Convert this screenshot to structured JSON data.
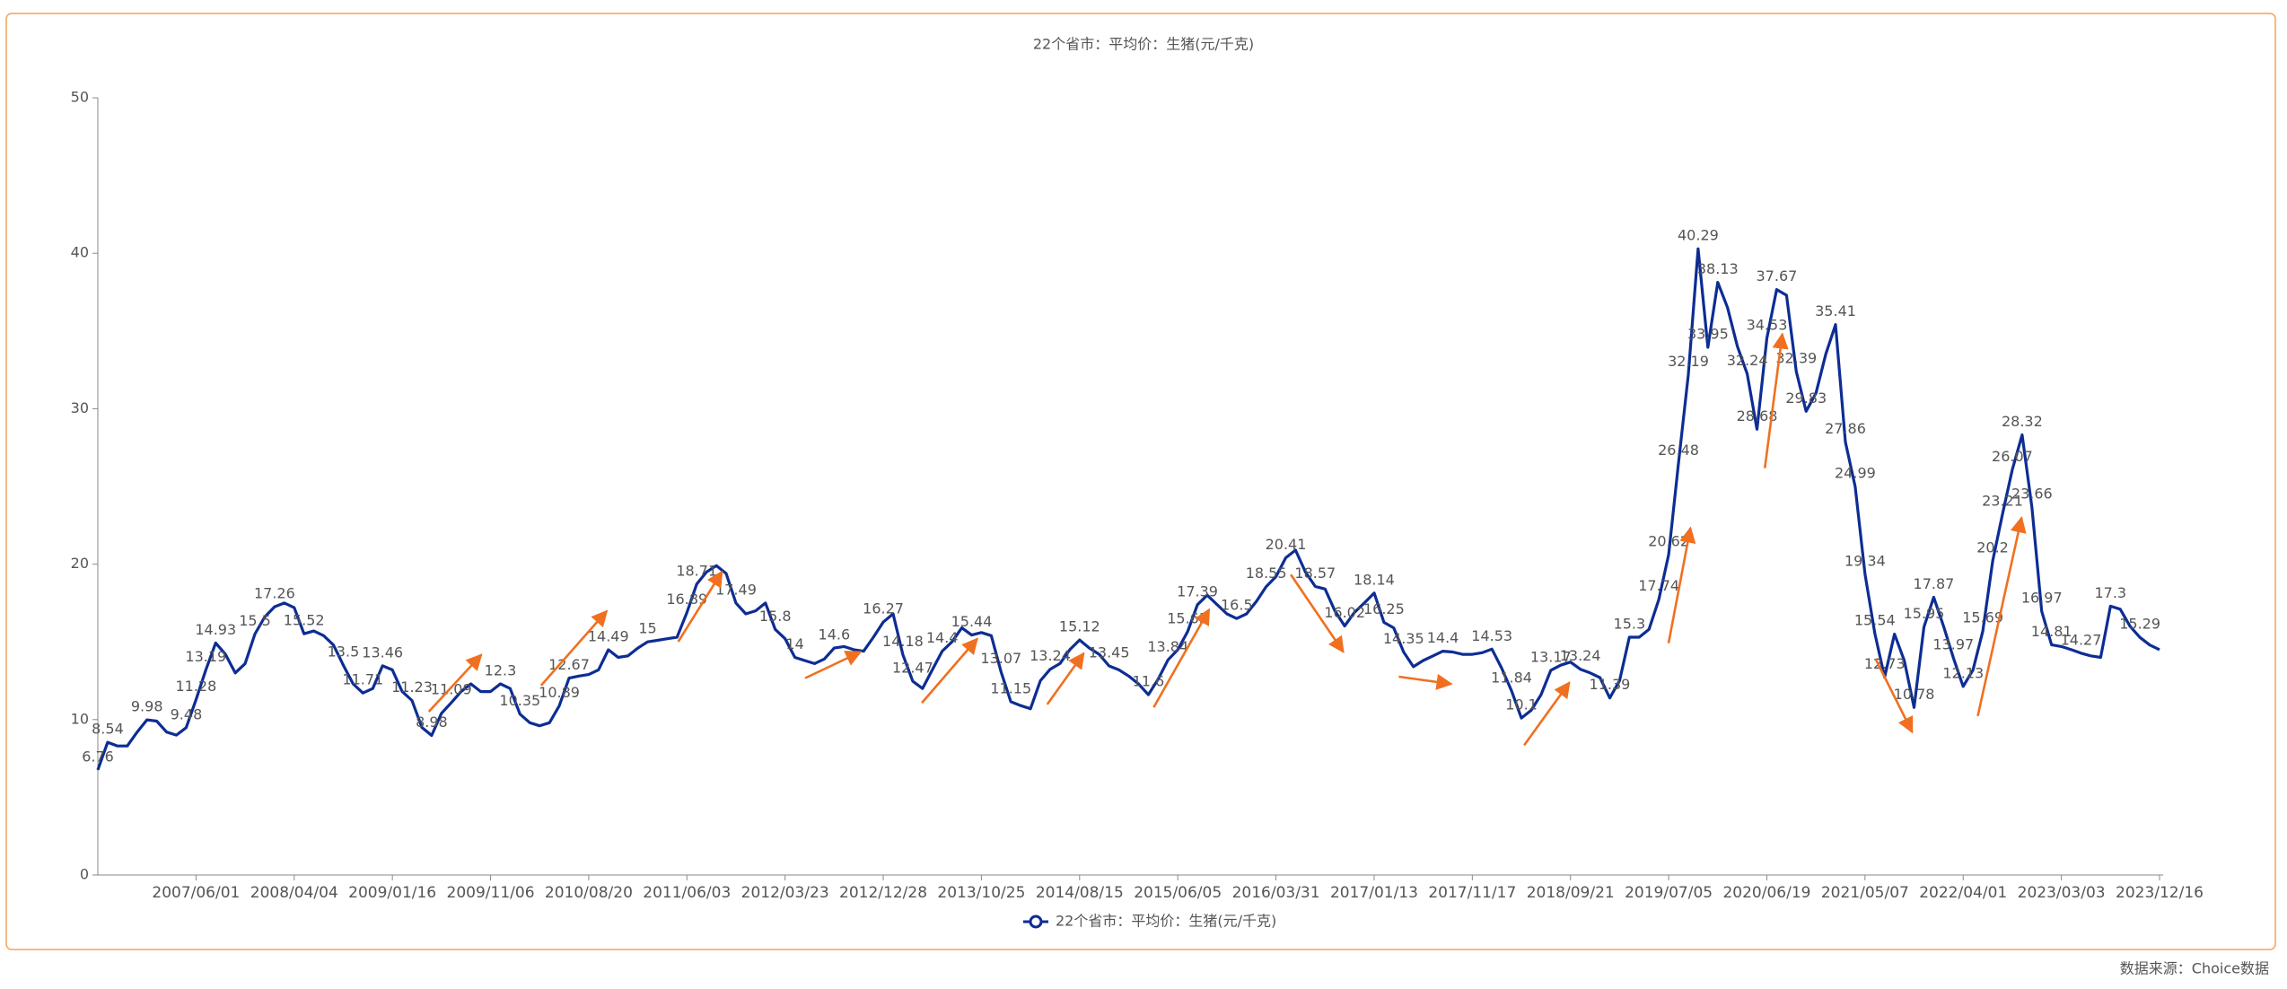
{
  "chart_data": {
    "type": "line",
    "title": "22个省市：平均价：生猪(元/千克)",
    "source": "数据来源：Choice数据",
    "ylim": [
      0,
      50
    ],
    "yticks": [
      0,
      10,
      20,
      30,
      40,
      50
    ],
    "categories": [
      null,
      null,
      null,
      null,
      null,
      null,
      null,
      null,
      null,
      null,
      "2007/06/01",
      null,
      null,
      null,
      null,
      null,
      null,
      null,
      null,
      null,
      "2008/04/04",
      null,
      null,
      null,
      null,
      null,
      null,
      null,
      null,
      null,
      "2009/01/16",
      null,
      null,
      null,
      null,
      null,
      null,
      null,
      null,
      null,
      "2009/11/06",
      null,
      null,
      null,
      null,
      null,
      null,
      null,
      null,
      null,
      "2010/08/20",
      null,
      null,
      null,
      null,
      null,
      null,
      null,
      null,
      null,
      "2011/06/03",
      null,
      null,
      null,
      null,
      null,
      null,
      null,
      null,
      null,
      "2012/03/23",
      null,
      null,
      null,
      null,
      null,
      null,
      null,
      null,
      null,
      "2012/12/28",
      null,
      null,
      null,
      null,
      null,
      null,
      null,
      null,
      null,
      "2013/10/25",
      null,
      null,
      null,
      null,
      null,
      null,
      null,
      null,
      null,
      "2014/08/15",
      null,
      null,
      null,
      null,
      null,
      null,
      null,
      null,
      null,
      "2015/06/05",
      null,
      null,
      null,
      null,
      null,
      null,
      null,
      null,
      null,
      "2016/03/31",
      null,
      null,
      null,
      null,
      null,
      null,
      null,
      null,
      null,
      "2017/01/13",
      null,
      null,
      null,
      null,
      null,
      null,
      null,
      null,
      null,
      "2017/11/17",
      null,
      null,
      null,
      null,
      null,
      null,
      null,
      null,
      null,
      "2018/09/21",
      null,
      null,
      null,
      null,
      null,
      null,
      null,
      null,
      null,
      "2019/07/05",
      null,
      null,
      null,
      null,
      null,
      null,
      null,
      null,
      null,
      "2020/06/19",
      null,
      null,
      null,
      null,
      null,
      null,
      null,
      null,
      null,
      "2021/05/07",
      null,
      null,
      null,
      null,
      null,
      null,
      null,
      null,
      null,
      "2022/04/01",
      null,
      null,
      null,
      null,
      null,
      null,
      null,
      null,
      null,
      "2023/03/03",
      null,
      null,
      null,
      null,
      null,
      null,
      null,
      null,
      null,
      "2023/12/16"
    ],
    "series": [
      {
        "name": "22个省市：平均价：生猪(元/千克)",
        "color": "#0d2d94",
        "values": [
          6.76,
          8.54,
          8.3,
          8.3,
          9.2,
          9.98,
          9.9,
          9.2,
          9.0,
          9.48,
          11.28,
          13.19,
          14.93,
          14.2,
          13.0,
          13.6,
          15.5,
          16.6,
          17.26,
          17.5,
          17.2,
          15.52,
          15.7,
          15.4,
          14.8,
          13.5,
          12.3,
          11.71,
          12.0,
          13.46,
          13.2,
          11.8,
          11.23,
          9.5,
          8.98,
          10.4,
          11.09,
          11.8,
          12.3,
          11.8,
          11.8,
          12.3,
          12.0,
          10.35,
          9.8,
          9.6,
          9.8,
          10.89,
          12.67,
          12.8,
          12.9,
          13.2,
          14.49,
          14.0,
          14.1,
          14.6,
          15,
          15.1,
          15.2,
          15.3,
          16.89,
          18.71,
          19.5,
          19.9,
          19.4,
          17.49,
          16.8,
          17.0,
          17.5,
          15.8,
          15.2,
          14,
          13.8,
          13.6,
          13.9,
          14.6,
          14.7,
          14.5,
          14.4,
          15.3,
          16.27,
          16.8,
          14.18,
          12.47,
          12.0,
          13.2,
          14.4,
          15.0,
          15.9,
          15.44,
          15.6,
          15.4,
          13.07,
          11.15,
          10.9,
          10.7,
          12.5,
          13.24,
          13.6,
          14.5,
          15.12,
          14.6,
          14.2,
          13.45,
          13.2,
          12.8,
          12.3,
          11.6,
          12.6,
          13.84,
          14.5,
          15.65,
          17.39,
          18.0,
          17.4,
          16.8,
          16.5,
          16.8,
          17.6,
          18.55,
          19.2,
          20.41,
          20.9,
          19.5,
          18.57,
          18.4,
          17.0,
          16.02,
          16.9,
          17.5,
          18.14,
          16.25,
          15.9,
          14.35,
          13.4,
          13.8,
          14.1,
          14.4,
          14.35,
          14.2,
          14.2,
          14.3,
          14.53,
          13.3,
          11.84,
          10.1,
          10.6,
          11.6,
          13.17,
          13.5,
          13.7,
          13.24,
          13.0,
          12.7,
          11.39,
          12.5,
          15.3,
          15.3,
          15.8,
          17.74,
          20.62,
          26.48,
          32.19,
          40.29,
          33.95,
          38.13,
          36.5,
          34.0,
          32.24,
          28.68,
          34.53,
          37.67,
          37.3,
          32.39,
          29.83,
          31.0,
          33.5,
          35.41,
          27.86,
          24.99,
          19.34,
          15.54,
          12.73,
          15.5,
          13.8,
          10.78,
          15.95,
          17.87,
          16.0,
          13.97,
          12.13,
          13.2,
          15.69,
          20.2,
          23.21,
          26.07,
          28.32,
          23.66,
          16.97,
          14.81,
          14.7,
          14.5,
          14.27,
          14.1,
          14.0,
          17.3,
          17.1,
          16.0,
          15.29,
          14.8,
          14.5
        ],
        "value_labels": [
          "6.76",
          "8.54",
          null,
          null,
          null,
          "9.98",
          null,
          null,
          null,
          "9.48",
          "11.28",
          "13.19",
          "14.93",
          null,
          null,
          null,
          "15.5",
          null,
          "17.26",
          null,
          null,
          "15.52",
          null,
          null,
          null,
          "13.5",
          null,
          "11.71",
          null,
          "13.46",
          null,
          null,
          "11.23",
          null,
          "8.98",
          null,
          "11.09",
          null,
          null,
          null,
          null,
          "12.3",
          null,
          "10.35",
          null,
          null,
          null,
          "10.89",
          "12.67",
          null,
          null,
          null,
          "14.49",
          null,
          null,
          null,
          "15",
          null,
          null,
          null,
          "16.89",
          "18.71",
          null,
          null,
          null,
          "17.49",
          null,
          null,
          null,
          "15.8",
          null,
          "14",
          null,
          null,
          null,
          "14.6",
          null,
          null,
          null,
          null,
          "16.27",
          null,
          "14.18",
          "12.47",
          null,
          null,
          "14.4",
          null,
          null,
          "15.44",
          null,
          null,
          "13.07",
          "11.15",
          null,
          null,
          null,
          "13.24",
          null,
          null,
          "15.12",
          null,
          null,
          "13.45",
          null,
          null,
          null,
          "11.6",
          null,
          "13.84",
          null,
          "15.65",
          "17.39",
          null,
          null,
          null,
          "16.5",
          null,
          null,
          "18.55",
          null,
          "20.41",
          null,
          null,
          "18.57",
          null,
          null,
          "16.02",
          null,
          null,
          "18.14",
          "16.25",
          null,
          "14.35",
          null,
          null,
          null,
          "14.4",
          null,
          null,
          null,
          null,
          "14.53",
          null,
          "11.84",
          "10.1",
          null,
          null,
          "13.17",
          null,
          null,
          "13.24",
          null,
          null,
          "11.39",
          null,
          "15.3",
          null,
          null,
          "17.74",
          "20.62",
          "26.48",
          "32.19",
          "40.29",
          "33.95",
          "38.13",
          null,
          null,
          "32.24",
          "28.68",
          "34.53",
          "37.67",
          null,
          "32.39",
          "29.83",
          null,
          null,
          "35.41",
          "27.86",
          "24.99",
          "19.34",
          "15.54",
          "12.73",
          null,
          null,
          "10.78",
          "15.95",
          "17.87",
          null,
          "13.97",
          "12.13",
          null,
          "15.69",
          "20.2",
          "23.21",
          "26.07",
          "28.32",
          "23.66",
          "16.97",
          "14.81",
          null,
          null,
          "14.27",
          null,
          null,
          "17.3",
          null,
          null,
          "15.29",
          null,
          null
        ]
      }
    ]
  }
}
